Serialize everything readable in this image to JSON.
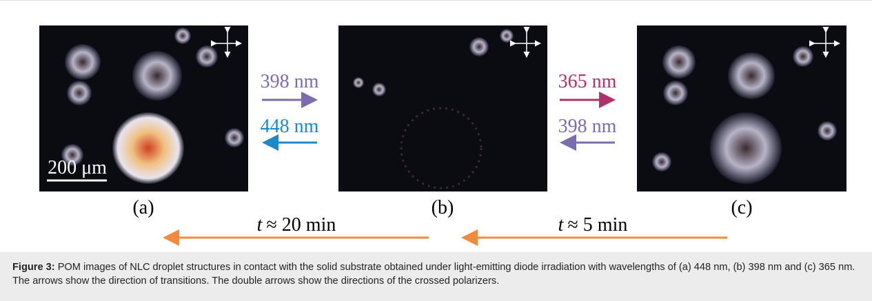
{
  "panels": [
    {
      "label": "(a)",
      "scale_bar": "200 μm"
    },
    {
      "label": "(b)"
    },
    {
      "label": "(c)"
    }
  ],
  "transitions": [
    {
      "forward": "398 nm",
      "backward": "448 nm"
    },
    {
      "forward": "365 nm",
      "backward": "398 nm"
    }
  ],
  "times": [
    {
      "variable": "t",
      "value": "≈ 20 min"
    },
    {
      "variable": "t",
      "value": "≈ 5 min"
    }
  ],
  "caption": {
    "label": "Figure 3:",
    "text": "POM images of NLC droplet structures in contact with the solid substrate obtained under light-emitting diode irradiation with wavelengths of (a) 448 nm, (b) 398 nm and (c) 365 nm. The arrows show the direction of transitions. The double arrows show the directions of the crossed polarizers."
  }
}
